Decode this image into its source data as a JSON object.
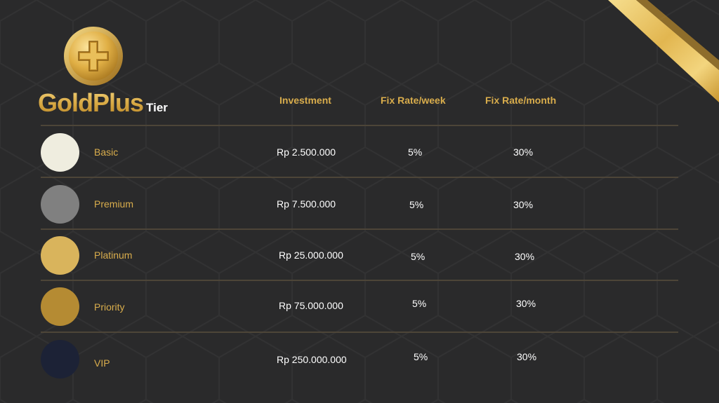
{
  "brand": {
    "gold": "Gold",
    "plus": "Plus",
    "tier": "Tier",
    "coin_icon": "gold-coin-plus-icon"
  },
  "headers": {
    "investment": "Investment",
    "weekly": "Fix Rate/week",
    "monthly": "Fix Rate/month"
  },
  "tiers": [
    {
      "name": "Basic",
      "investment": "Rp 2.500.000",
      "weekly": "5%",
      "monthly": "30%",
      "color": "#efeddf"
    },
    {
      "name": "Premium",
      "investment": "Rp 7.500.000",
      "weekly": "5%",
      "monthly": "30%",
      "color": "#808080"
    },
    {
      "name": "Platinum",
      "investment": "Rp 25.000.000",
      "weekly": "5%",
      "monthly": "30%",
      "color": "#d9b45c"
    },
    {
      "name": "Priority",
      "investment": "Rp 75.000.000",
      "weekly": "5%",
      "monthly": "30%",
      "color": "#b58b33"
    },
    {
      "name": "VIP",
      "investment": "Rp 250.000.000",
      "weekly": "5%",
      "monthly": "30%",
      "color": "#1c2236"
    }
  ],
  "colors": {
    "background": "#2a2a2b",
    "accent_gold": "#d9ad4c",
    "divider": "#4d4538",
    "text": "#ffffff"
  }
}
